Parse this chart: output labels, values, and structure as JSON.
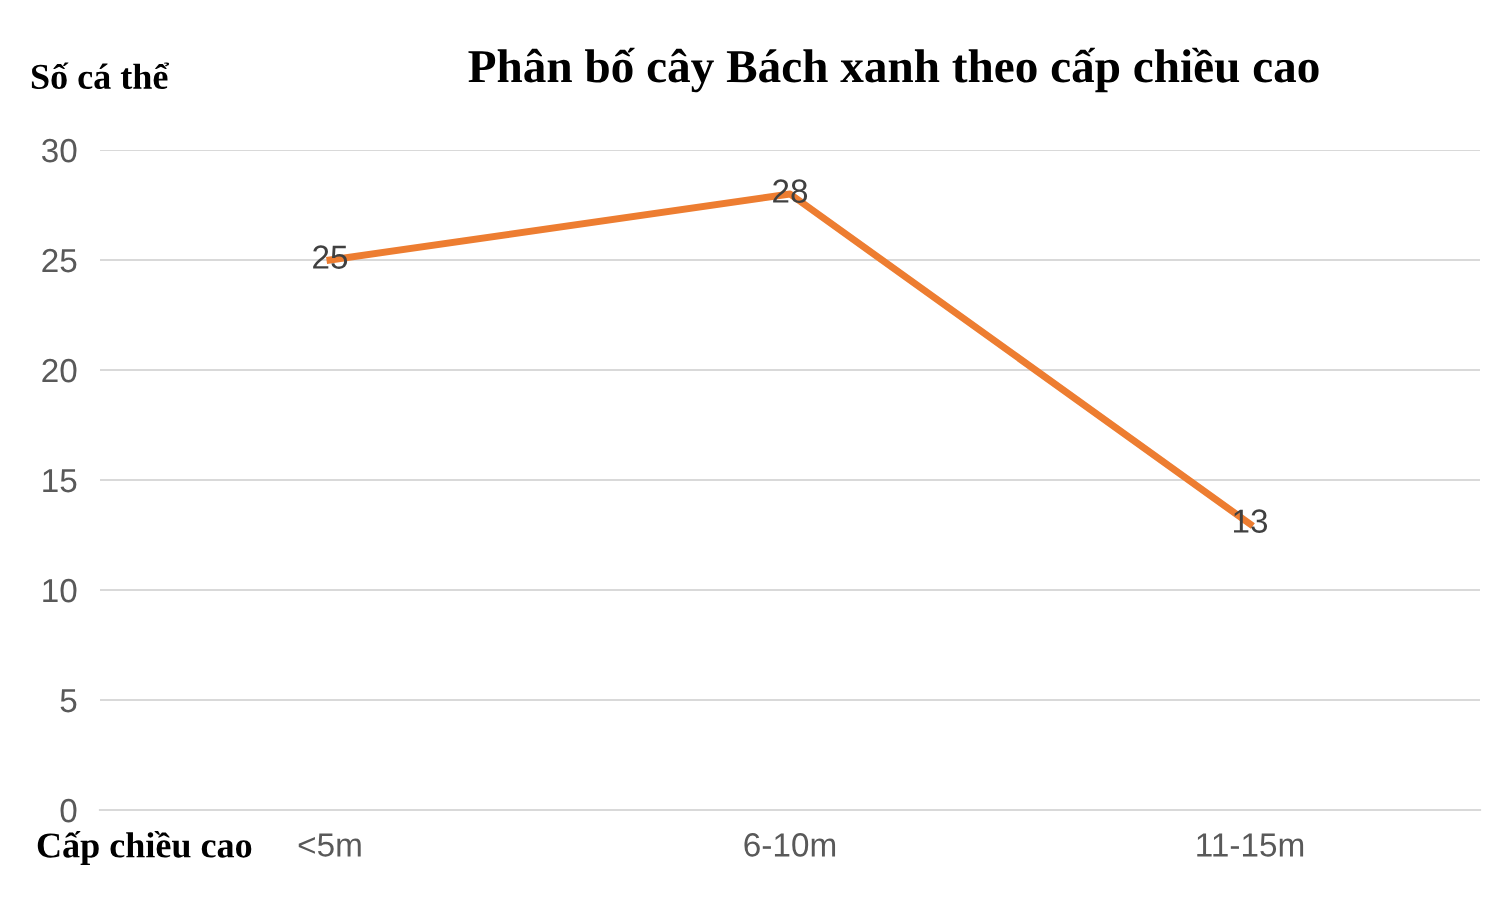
{
  "chart_data": {
    "type": "line",
    "title": "Phân bố cây Bách xanh theo cấp chiều cao",
    "ylabel": "Số cá thể",
    "xlabel": "Cấp chiều cao",
    "categories": [
      "<5m",
      "6-10m",
      "11-15m"
    ],
    "series": [
      {
        "color": "#ed7d31",
        "values": [
          25,
          28,
          13
        ]
      }
    ],
    "ylim": [
      0,
      30
    ],
    "yticks": [
      0,
      5,
      10,
      15,
      20,
      25,
      30
    ],
    "grid": "y",
    "data_labels": true,
    "marker": "none",
    "line_style": "solid"
  }
}
